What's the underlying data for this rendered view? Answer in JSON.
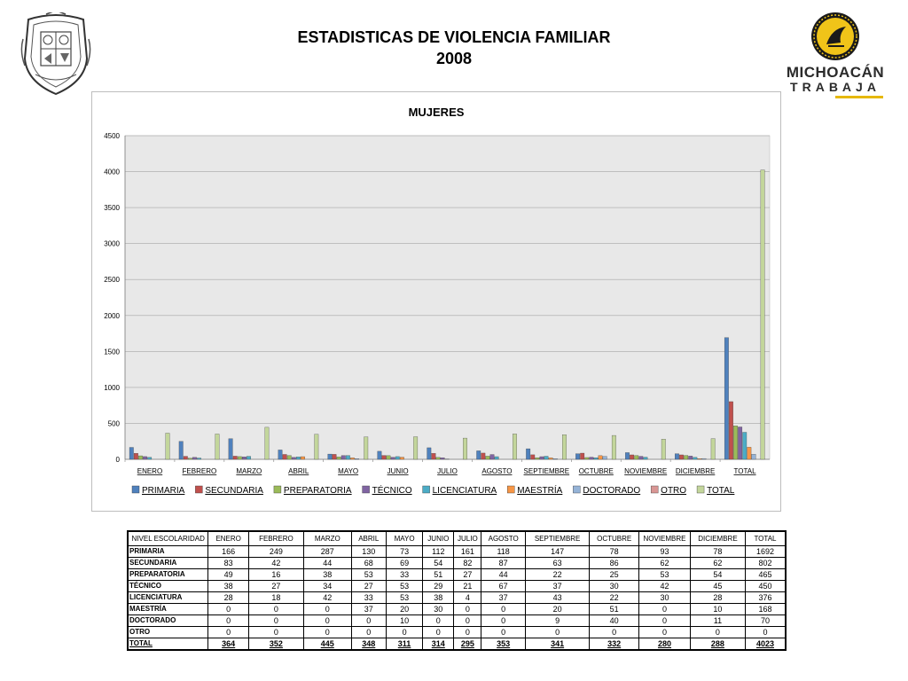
{
  "header": {
    "title_line1": "ESTADISTICAS DE VIOLENCIA FAMILIAR",
    "title_line2": "2008"
  },
  "logo": {
    "word1": "MICHOACÁN",
    "word2": "TRABAJA",
    "accent_color": "#e6b800"
  },
  "seal": {
    "icon": "state-coat-of-arms-seal"
  },
  "chart_data": {
    "type": "bar",
    "title": "MUJERES",
    "categories": [
      "ENERO",
      "FEBRERO",
      "MARZO",
      "ABRIL",
      "MAYO",
      "JUNIO",
      "JULIO",
      "AGOSTO",
      "SEPTIEMBRE",
      "OCTUBRE",
      "NOVIEMBRE",
      "DICIEMBRE",
      "TOTAL"
    ],
    "ylim": [
      0,
      4500
    ],
    "yticks": [
      0,
      500,
      1000,
      1500,
      2000,
      2500,
      3000,
      3500,
      4000,
      4500
    ],
    "grid": true,
    "legend_position": "bottom",
    "series": [
      {
        "name": "PRIMARIA",
        "color": "#4f81bd",
        "values": [
          166,
          249,
          287,
          130,
          73,
          112,
          161,
          118,
          147,
          78,
          93,
          78,
          1692
        ]
      },
      {
        "name": "SECUNDARIA",
        "color": "#c0504d",
        "values": [
          83,
          42,
          44,
          68,
          69,
          54,
          82,
          87,
          63,
          86,
          62,
          62,
          802
        ]
      },
      {
        "name": "PREPARATORIA",
        "color": "#9bbb59",
        "values": [
          49,
          16,
          38,
          53,
          33,
          51,
          27,
          44,
          22,
          25,
          53,
          54,
          465
        ]
      },
      {
        "name": "TÉCNICO",
        "color": "#8064a2",
        "values": [
          38,
          27,
          34,
          27,
          53,
          29,
          21,
          67,
          37,
          30,
          42,
          45,
          450
        ]
      },
      {
        "name": "LICENCIATURA",
        "color": "#4bacc6",
        "values": [
          28,
          18,
          42,
          33,
          53,
          38,
          4,
          37,
          43,
          22,
          30,
          28,
          376
        ]
      },
      {
        "name": "MAESTRÍA",
        "color": "#f79646",
        "values": [
          0,
          0,
          0,
          37,
          20,
          30,
          0,
          0,
          20,
          51,
          0,
          10,
          168
        ]
      },
      {
        "name": "DOCTORADO",
        "color": "#95b3d7",
        "values": [
          0,
          0,
          0,
          0,
          10,
          0,
          0,
          0,
          9,
          40,
          0,
          11,
          70
        ]
      },
      {
        "name": "OTRO",
        "color": "#d99694",
        "values": [
          0,
          0,
          0,
          0,
          0,
          0,
          0,
          0,
          0,
          0,
          0,
          0,
          0
        ]
      },
      {
        "name": "TOTAL",
        "color": "#c3d69b",
        "values": [
          364,
          352,
          445,
          348,
          311,
          314,
          295,
          353,
          341,
          332,
          280,
          288,
          4023
        ]
      }
    ]
  },
  "table": {
    "headers": [
      "NIVEL ESCOLARIDAD",
      "ENERO",
      "FEBRERO",
      "MARZO",
      "ABRIL",
      "MAYO",
      "JUNIO",
      "JULIO",
      "AGOSTO",
      "SEPTIEMBRE",
      "OCTUBRE",
      "NOVIEMBRE",
      "DICIEMBRE",
      "TOTAL"
    ],
    "rows": [
      {
        "label": "PRIMARIA",
        "cells": [
          "166",
          "249",
          "287",
          "130",
          "73",
          "112",
          "161",
          "118",
          "147",
          "78",
          "93",
          "78",
          "1692"
        ]
      },
      {
        "label": "SECUNDARIA",
        "cells": [
          "83",
          "42",
          "44",
          "68",
          "69",
          "54",
          "82",
          "87",
          "63",
          "86",
          "62",
          "62",
          "802"
        ]
      },
      {
        "label": "PREPARATORIA",
        "cells": [
          "49",
          "16",
          "38",
          "53",
          "33",
          "51",
          "27",
          "44",
          "22",
          "25",
          "53",
          "54",
          "465"
        ]
      },
      {
        "label": "TÉCNICO",
        "cells": [
          "38",
          "27",
          "34",
          "27",
          "53",
          "29",
          "21",
          "67",
          "37",
          "30",
          "42",
          "45",
          "450"
        ]
      },
      {
        "label": "LICENCIATURA",
        "cells": [
          "28",
          "18",
          "42",
          "33",
          "53",
          "38",
          "4",
          "37",
          "43",
          "22",
          "30",
          "28",
          "376"
        ]
      },
      {
        "label": "MAESTRÍA",
        "cells": [
          "0",
          "0",
          "0",
          "37",
          "20",
          "30",
          "0",
          "0",
          "20",
          "51",
          "0",
          "10",
          "168"
        ]
      },
      {
        "label": "DOCTORADO",
        "cells": [
          "0",
          "0",
          "0",
          "0",
          "10",
          "0",
          "0",
          "0",
          "9",
          "40",
          "0",
          "11",
          "70"
        ]
      },
      {
        "label": "OTRO",
        "cells": [
          "0",
          "0",
          "0",
          "0",
          "0",
          "0",
          "0",
          "0",
          "0",
          "0",
          "0",
          "0",
          "0"
        ]
      },
      {
        "label": "TOTAL",
        "cells": [
          "364",
          "352",
          "445",
          "348",
          "311",
          "314",
          "295",
          "353",
          "341",
          "332",
          "280",
          "288",
          "4023"
        ]
      }
    ]
  }
}
